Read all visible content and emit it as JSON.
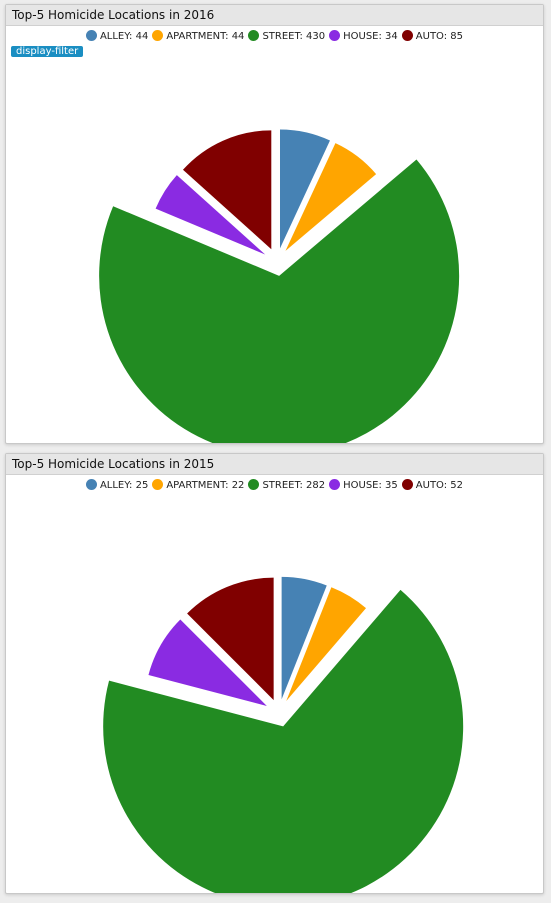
{
  "panels": [
    {
      "title": "Top-5 Homicide Locations in 2016",
      "filter_label": "display-filter",
      "chart_data": {
        "type": "pie",
        "title": "Top-5 Homicide Locations in 2016",
        "slices": [
          {
            "label": "ALLEY",
            "value": 44,
            "color": "#4682b4"
          },
          {
            "label": "APARTMENT",
            "value": 44,
            "color": "#ffa500"
          },
          {
            "label": "STREET",
            "value": 430,
            "color": "#228b22"
          },
          {
            "label": "HOUSE",
            "value": 34,
            "color": "#8a2be2"
          },
          {
            "label": "AUTO",
            "value": 85,
            "color": "#800000"
          }
        ],
        "legend_position": "top-center"
      }
    },
    {
      "title": "Top-5 Homicide Locations in 2015",
      "filter_label": "",
      "chart_data": {
        "type": "pie",
        "title": "Top-5 Homicide Locations in 2015",
        "slices": [
          {
            "label": "ALLEY",
            "value": 25,
            "color": "#4682b4"
          },
          {
            "label": "APARTMENT",
            "value": 22,
            "color": "#ffa500"
          },
          {
            "label": "STREET",
            "value": 282,
            "color": "#228b22"
          },
          {
            "label": "HOUSE",
            "value": 35,
            "color": "#8a2be2"
          },
          {
            "label": "AUTO",
            "value": 52,
            "color": "#800000"
          }
        ],
        "legend_position": "top-center"
      }
    }
  ]
}
